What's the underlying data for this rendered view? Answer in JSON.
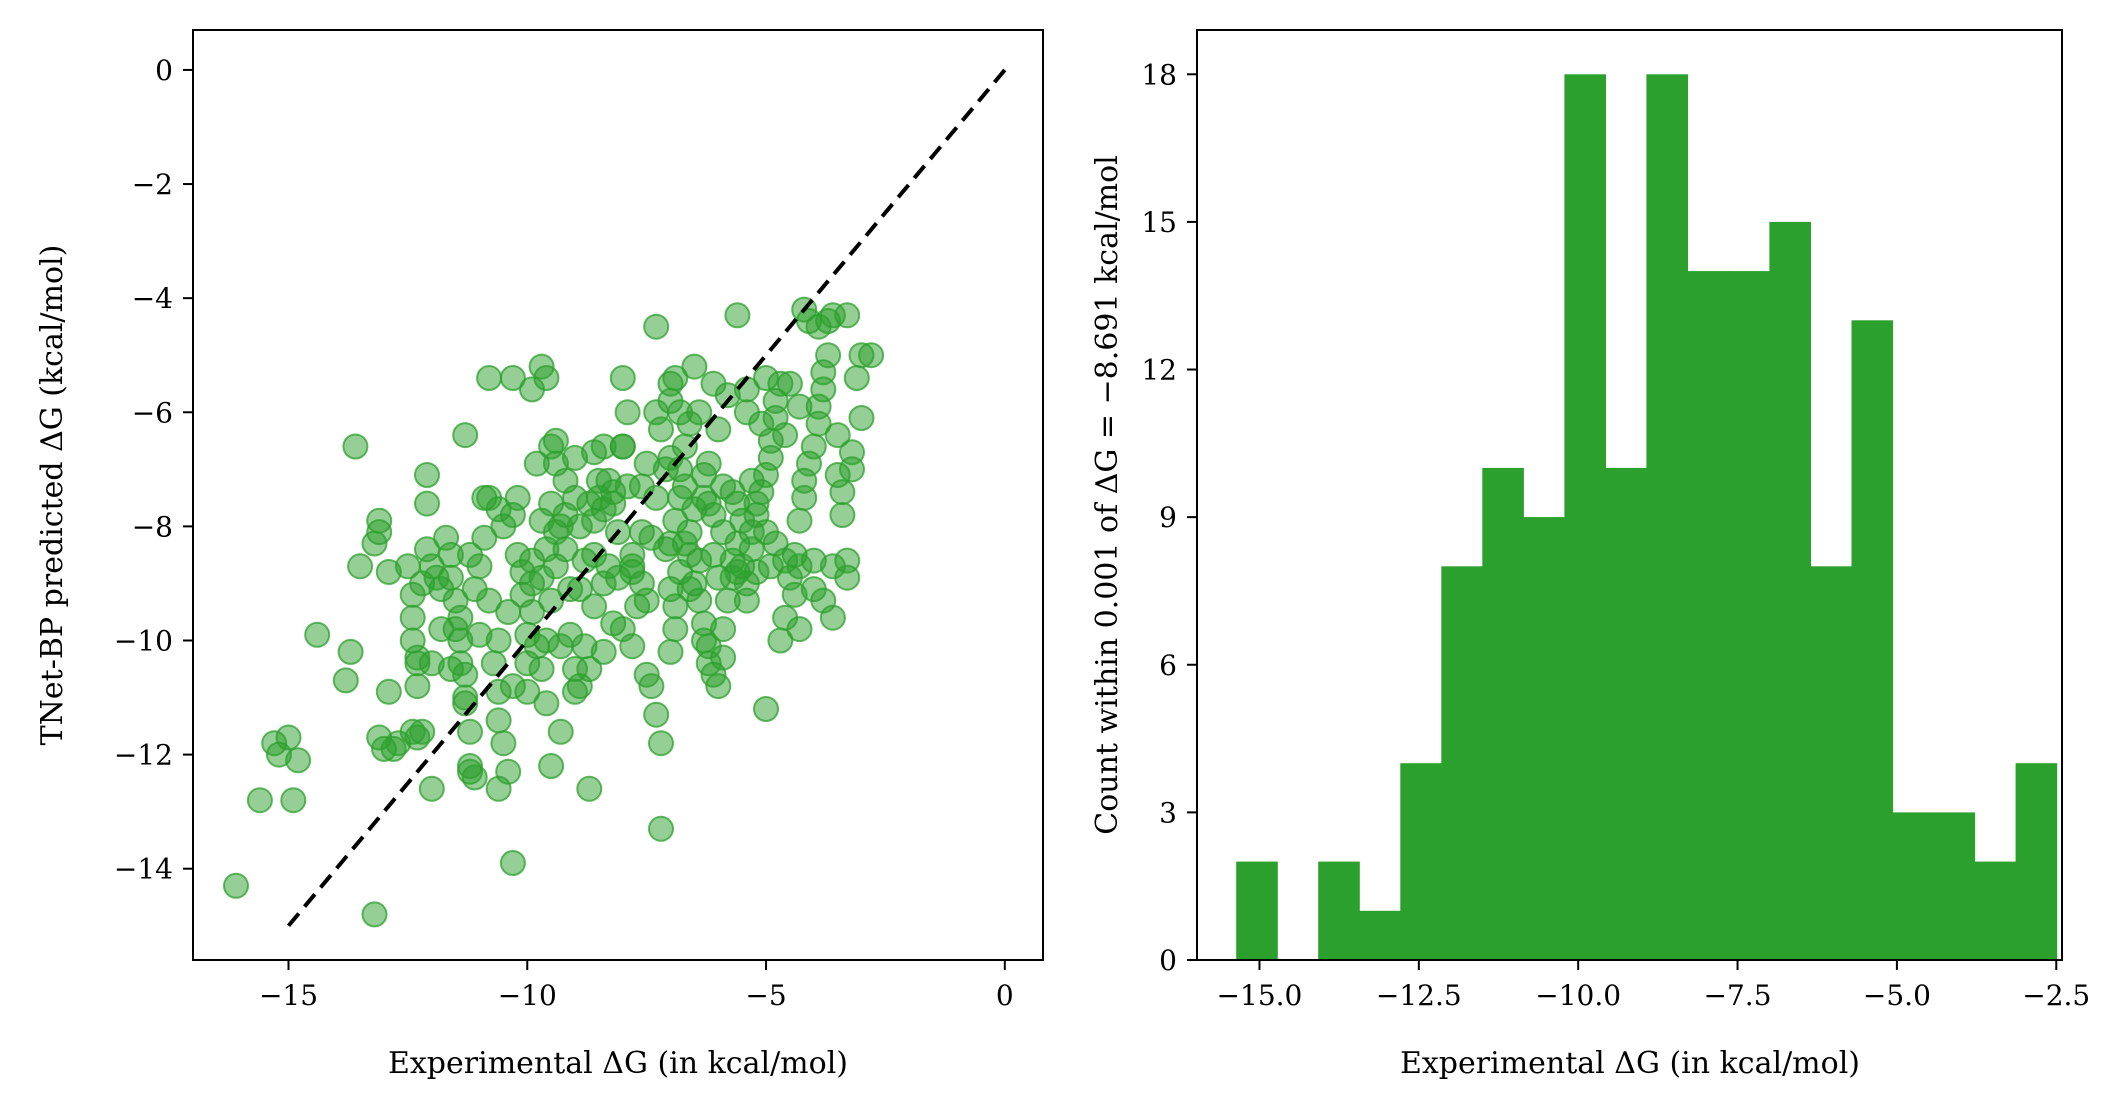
{
  "figure": {
    "colors": {
      "points": "#2ca02c",
      "bars": "#2ca02c",
      "identity_line": "#000000",
      "axes": "#000000"
    }
  },
  "chart_data": [
    {
      "type": "scatter",
      "xlabel": "Experimental ΔG (in kcal/mol)",
      "ylabel": "TNet-BP predicted ΔG (kcal/mol)",
      "xlim": [
        -17,
        0.8
      ],
      "ylim": [
        -15.6,
        0.7
      ],
      "xticks": [
        -15,
        -10,
        -5,
        0
      ],
      "xtick_labels": [
        "−15",
        "−10",
        "−5",
        "0"
      ],
      "yticks": [
        -14,
        -12,
        -10,
        -8,
        -6,
        -4,
        -2,
        0
      ],
      "ytick_labels": [
        "−14",
        "−12",
        "−10",
        "−8",
        "−6",
        "−4",
        "−2",
        "0"
      ],
      "grid": false,
      "point_alpha": 0.5,
      "reference_line": {
        "style": "dashed",
        "x": [
          -15,
          0
        ],
        "y": [
          -15,
          0
        ]
      },
      "points": [
        [
          -16.1,
          -14.3
        ],
        [
          -15.6,
          -12.8
        ],
        [
          -15.3,
          -11.8
        ],
        [
          -15.2,
          -12.0
        ],
        [
          -15.0,
          -11.7
        ],
        [
          -14.9,
          -12.8
        ],
        [
          -14.8,
          -12.1
        ],
        [
          -14.4,
          -9.9
        ],
        [
          -13.7,
          -10.2
        ],
        [
          -13.8,
          -10.7
        ],
        [
          -13.6,
          -6.6
        ],
        [
          -13.5,
          -8.7
        ],
        [
          -13.2,
          -8.3
        ],
        [
          -13.1,
          -8.1
        ],
        [
          -13.1,
          -7.9
        ],
        [
          -13.1,
          -11.7
        ],
        [
          -12.9,
          -8.8
        ],
        [
          -12.9,
          -10.9
        ],
        [
          -12.8,
          -11.9
        ],
        [
          -12.7,
          -11.8
        ],
        [
          -12.5,
          -8.7
        ],
        [
          -12.4,
          -9.2
        ],
        [
          -12.4,
          -9.6
        ],
        [
          -12.4,
          -10.0
        ],
        [
          -12.3,
          -10.4
        ],
        [
          -12.3,
          -10.3
        ],
        [
          -12.3,
          -11.7
        ],
        [
          -12.2,
          -11.6
        ],
        [
          -12.2,
          -9.0
        ],
        [
          -12.1,
          -8.4
        ],
        [
          -12.1,
          -7.6
        ],
        [
          -12.1,
          -7.1
        ],
        [
          -12.0,
          -8.7
        ],
        [
          -12.0,
          -12.6
        ],
        [
          -11.9,
          -8.9
        ],
        [
          -11.7,
          -8.2
        ],
        [
          -11.6,
          -8.9
        ],
        [
          -11.5,
          -9.3
        ],
        [
          -11.5,
          -9.8
        ],
        [
          -11.4,
          -10.0
        ],
        [
          -11.4,
          -10.4
        ],
        [
          -11.3,
          -10.6
        ],
        [
          -11.3,
          -11.0
        ],
        [
          -11.2,
          -11.6
        ],
        [
          -11.2,
          -12.2
        ],
        [
          -11.1,
          -12.4
        ],
        [
          -11.1,
          -9.1
        ],
        [
          -11.0,
          -8.7
        ],
        [
          -10.9,
          -7.5
        ],
        [
          -10.8,
          -7.5
        ],
        [
          -10.8,
          -5.4
        ],
        [
          -10.7,
          -10.4
        ],
        [
          -10.6,
          -10.9
        ],
        [
          -10.6,
          -11.4
        ],
        [
          -10.5,
          -11.8
        ],
        [
          -10.4,
          -12.3
        ],
        [
          -10.3,
          -13.9
        ],
        [
          -11.3,
          -6.4
        ],
        [
          -10.2,
          -7.5
        ],
        [
          -10.1,
          -9.2
        ],
        [
          -10.0,
          -9.9
        ],
        [
          -9.9,
          -9.5
        ],
        [
          -9.8,
          -10.1
        ],
        [
          -9.7,
          -10.5
        ],
        [
          -9.5,
          -6.6
        ],
        [
          -9.4,
          -8.7
        ],
        [
          -9.4,
          -8.1
        ],
        [
          -9.3,
          -8.0
        ],
        [
          -9.2,
          -7.8
        ],
        [
          -9.1,
          -9.1
        ],
        [
          -9.1,
          -9.9
        ],
        [
          -9.0,
          -10.5
        ],
        [
          -9.0,
          -10.9
        ],
        [
          -8.9,
          -10.8
        ],
        [
          -8.8,
          -10.1
        ],
        [
          -8.7,
          -12.6
        ],
        [
          -8.6,
          -8.5
        ],
        [
          -8.5,
          -7.2
        ],
        [
          -8.5,
          -7.5
        ],
        [
          -8.4,
          -7.7
        ],
        [
          -8.4,
          -6.6
        ],
        [
          -8.3,
          -7.2
        ],
        [
          -8.2,
          -7.6
        ],
        [
          -8.1,
          -8.1
        ],
        [
          -8.0,
          -6.6
        ],
        [
          -8.0,
          -5.4
        ],
        [
          -7.9,
          -6.0
        ],
        [
          -7.8,
          -8.5
        ],
        [
          -7.8,
          -8.8
        ],
        [
          -7.7,
          -9.4
        ],
        [
          -7.6,
          -9.0
        ],
        [
          -7.5,
          -10.6
        ],
        [
          -7.4,
          -10.8
        ],
        [
          -7.3,
          -11.3
        ],
        [
          -7.2,
          -11.8
        ],
        [
          -7.2,
          -13.3
        ],
        [
          -7.0,
          -10.2
        ],
        [
          -6.9,
          -9.8
        ],
        [
          -6.9,
          -9.4
        ],
        [
          -6.8,
          -7.5
        ],
        [
          -6.8,
          -7.0
        ],
        [
          -6.7,
          -6.6
        ],
        [
          -6.6,
          -8.1
        ],
        [
          -6.6,
          -8.5
        ],
        [
          -6.5,
          -9.0
        ],
        [
          -6.4,
          -9.3
        ],
        [
          -6.3,
          -9.7
        ],
        [
          -6.3,
          -10.0
        ],
        [
          -6.2,
          -10.1
        ],
        [
          -6.2,
          -10.4
        ],
        [
          -6.1,
          -10.6
        ],
        [
          -6.0,
          -10.8
        ],
        [
          -5.9,
          -10.3
        ],
        [
          -5.9,
          -9.8
        ],
        [
          -5.8,
          -9.3
        ],
        [
          -5.7,
          -8.9
        ],
        [
          -5.7,
          -8.6
        ],
        [
          -5.6,
          -8.3
        ],
        [
          -5.5,
          -8.7
        ],
        [
          -5.4,
          -9.0
        ],
        [
          -5.3,
          -8.4
        ],
        [
          -5.3,
          -8.1
        ],
        [
          -5.2,
          -7.8
        ],
        [
          -5.2,
          -7.6
        ],
        [
          -5.1,
          -7.4
        ],
        [
          -5.0,
          -7.1
        ],
        [
          -4.9,
          -6.8
        ],
        [
          -4.9,
          -6.5
        ],
        [
          -4.8,
          -6.1
        ],
        [
          -4.8,
          -5.8
        ],
        [
          -4.7,
          -5.5
        ],
        [
          -4.6,
          -8.6
        ],
        [
          -4.5,
          -8.9
        ],
        [
          -4.4,
          -9.2
        ],
        [
          -4.4,
          -8.5
        ],
        [
          -4.3,
          -7.9
        ],
        [
          -4.2,
          -7.5
        ],
        [
          -4.2,
          -7.2
        ],
        [
          -4.1,
          -6.9
        ],
        [
          -4.0,
          -6.6
        ],
        [
          -3.9,
          -6.2
        ],
        [
          -3.9,
          -5.9
        ],
        [
          -3.8,
          -5.6
        ],
        [
          -3.8,
          -5.3
        ],
        [
          -3.7,
          -5.0
        ],
        [
          -3.7,
          -4.4
        ],
        [
          -3.6,
          -4.3
        ],
        [
          -3.5,
          -6.4
        ],
        [
          -3.5,
          -7.1
        ],
        [
          -3.4,
          -7.4
        ],
        [
          -3.4,
          -7.8
        ],
        [
          -3.3,
          -8.6
        ],
        [
          -3.3,
          -8.9
        ],
        [
          -3.3,
          -4.3
        ],
        [
          -3.2,
          -7.0
        ],
        [
          -3.2,
          -6.7
        ],
        [
          -3.1,
          -5.4
        ],
        [
          -3.0,
          -5.0
        ],
        [
          -3.0,
          -6.1
        ],
        [
          -2.8,
          -5.0
        ],
        [
          -4.2,
          -4.2
        ],
        [
          -3.9,
          -4.5
        ],
        [
          -4.1,
          -4.4
        ],
        [
          -5.6,
          -4.3
        ],
        [
          -7.3,
          -4.5
        ],
        [
          -9.7,
          -5.2
        ],
        [
          -10.3,
          -5.4
        ],
        [
          -9.9,
          -5.6
        ],
        [
          -9.6,
          -5.4
        ],
        [
          -8.0,
          -6.6
        ],
        [
          -7.2,
          -6.3
        ],
        [
          -6.9,
          -5.4
        ],
        [
          -6.5,
          -5.2
        ],
        [
          -6.1,
          -5.5
        ],
        [
          -5.8,
          -5.7
        ],
        [
          -5.4,
          -5.6
        ],
        [
          -5.0,
          -5.4
        ],
        [
          -4.5,
          -5.5
        ],
        [
          -4.3,
          -5.9
        ],
        [
          -4.6,
          -6.4
        ],
        [
          -5.1,
          -6.2
        ],
        [
          -5.4,
          -6.0
        ],
        [
          -6.0,
          -6.3
        ],
        [
          -6.2,
          -6.9
        ],
        [
          -6.3,
          -7.5
        ],
        [
          -6.5,
          -7.7
        ],
        [
          -6.9,
          -7.9
        ],
        [
          -7.3,
          -7.5
        ],
        [
          -7.1,
          -7.0
        ],
        [
          -7.0,
          -6.8
        ],
        [
          -7.5,
          -6.9
        ],
        [
          -7.6,
          -7.3
        ],
        [
          -7.4,
          -8.2
        ],
        [
          -7.0,
          -8.3
        ],
        [
          -6.7,
          -8.3
        ],
        [
          -6.4,
          -8.6
        ],
        [
          -6.0,
          -8.9
        ],
        [
          -5.6,
          -8.8
        ],
        [
          -5.2,
          -8.8
        ],
        [
          -8.8,
          -8.6
        ],
        [
          -9.2,
          -8.4
        ],
        [
          -9.6,
          -8.4
        ],
        [
          -9.9,
          -8.6
        ],
        [
          -10.2,
          -8.5
        ],
        [
          -10.5,
          -8.0
        ],
        [
          -10.6,
          -7.7
        ],
        [
          -10.9,
          -8.2
        ],
        [
          -11.2,
          -8.5
        ],
        [
          -11.6,
          -8.5
        ],
        [
          -11.8,
          -9.1
        ],
        [
          -10.8,
          -9.3
        ],
        [
          -10.4,
          -9.5
        ],
        [
          -9.9,
          -9.0
        ],
        [
          -9.5,
          -9.3
        ],
        [
          -8.9,
          -9.1
        ],
        [
          -8.6,
          -9.4
        ],
        [
          -8.2,
          -9.7
        ],
        [
          -8.0,
          -9.8
        ],
        [
          -7.8,
          -10.1
        ],
        [
          -8.4,
          -10.2
        ],
        [
          -8.7,
          -10.5
        ],
        [
          -9.3,
          -10.1
        ],
        [
          -9.6,
          -10.0
        ],
        [
          -10.0,
          -10.4
        ],
        [
          -10.3,
          -10.8
        ],
        [
          -10.6,
          -10.0
        ],
        [
          -11.0,
          -9.9
        ],
        [
          -11.4,
          -9.6
        ],
        [
          -11.8,
          -9.8
        ],
        [
          -12.0,
          -10.4
        ],
        [
          -12.3,
          -10.8
        ],
        [
          -11.6,
          -10.5
        ],
        [
          -11.3,
          -11.1
        ],
        [
          -12.4,
          -11.6
        ],
        [
          -13.0,
          -11.9
        ],
        [
          -13.2,
          -14.8
        ],
        [
          -11.2,
          -12.3
        ],
        [
          -10.6,
          -12.6
        ],
        [
          -9.5,
          -12.2
        ],
        [
          -9.3,
          -11.6
        ],
        [
          -9.6,
          -11.1
        ],
        [
          -10.0,
          -10.9
        ],
        [
          -8.9,
          -8.0
        ],
        [
          -8.6,
          -7.9
        ],
        [
          -8.2,
          -7.4
        ],
        [
          -9.2,
          -7.2
        ],
        [
          -9.4,
          -6.9
        ],
        [
          -9.8,
          -6.9
        ],
        [
          -9.4,
          -6.5
        ],
        [
          -9.0,
          -6.8
        ],
        [
          -8.6,
          -6.7
        ],
        [
          -7.3,
          -6.0
        ],
        [
          -7.0,
          -5.8
        ],
        [
          -6.6,
          -6.2
        ],
        [
          -6.4,
          -6.0
        ],
        [
          -7.0,
          -5.5
        ],
        [
          -6.8,
          -6.0
        ],
        [
          -6.3,
          -7.1
        ],
        [
          -5.9,
          -7.3
        ],
        [
          -5.6,
          -7.6
        ],
        [
          -5.3,
          -7.2
        ],
        [
          -5.7,
          -7.4
        ],
        [
          -6.1,
          -7.8
        ],
        [
          -5.5,
          -7.9
        ],
        [
          -5.0,
          -8.1
        ],
        [
          -4.8,
          -8.3
        ],
        [
          -4.9,
          -8.7
        ],
        [
          -4.3,
          -8.7
        ],
        [
          -4.0,
          -8.6
        ],
        [
          -3.6,
          -8.7
        ],
        [
          -4.6,
          -9.6
        ],
        [
          -3.8,
          -9.3
        ],
        [
          -4.3,
          -9.8
        ],
        [
          -4.7,
          -10.0
        ],
        [
          -5.0,
          -11.2
        ],
        [
          -3.6,
          -9.6
        ],
        [
          -4.0,
          -9.1
        ],
        [
          -5.4,
          -9.3
        ],
        [
          -6.8,
          -8.8
        ],
        [
          -7.1,
          -8.4
        ],
        [
          -7.8,
          -8.7
        ],
        [
          -8.1,
          -8.9
        ],
        [
          -8.4,
          -9.0
        ],
        [
          -9.7,
          -8.9
        ],
        [
          -10.1,
          -8.8
        ],
        [
          -10.3,
          -7.8
        ],
        [
          -9.7,
          -7.9
        ],
        [
          -9.5,
          -7.6
        ],
        [
          -9.0,
          -7.5
        ],
        [
          -8.7,
          -7.6
        ],
        [
          -8.3,
          -8.7
        ],
        [
          -7.6,
          -8.1
        ],
        [
          -7.9,
          -7.3
        ],
        [
          -6.7,
          -7.3
        ],
        [
          -6.2,
          -7.6
        ],
        [
          -5.9,
          -8.1
        ],
        [
          -6.1,
          -8.5
        ],
        [
          -6.6,
          -9.1
        ],
        [
          -7.0,
          -9.1
        ],
        [
          -7.5,
          -9.3
        ]
      ]
    },
    {
      "type": "bar",
      "subtype": "histogram",
      "xlabel": "Experimental ΔG (in kcal/mol)",
      "ylabel": "Count within 0.001 of ΔG = −8.691 kcal/mol",
      "xlim": [
        -15.98,
        -2.41
      ],
      "ylim": [
        0,
        18.9
      ],
      "xticks": [
        -15.0,
        -12.5,
        -10.0,
        -7.5,
        -5.0,
        -2.5
      ],
      "xtick_labels": [
        "−15.0",
        "−12.5",
        "−10.0",
        "−7.5",
        "−5.0",
        "−2.5"
      ],
      "yticks": [
        0,
        3,
        6,
        9,
        12,
        15,
        18
      ],
      "ytick_labels": [
        "0",
        "3",
        "6",
        "9",
        "12",
        "15",
        "18"
      ],
      "grid": false,
      "bin_start": -15.365,
      "bin_width": 0.6435,
      "values": [
        2,
        0,
        2,
        1,
        4,
        8,
        10,
        9,
        18,
        10,
        18,
        14,
        14,
        15,
        8,
        13,
        3,
        3,
        2,
        4
      ]
    }
  ]
}
